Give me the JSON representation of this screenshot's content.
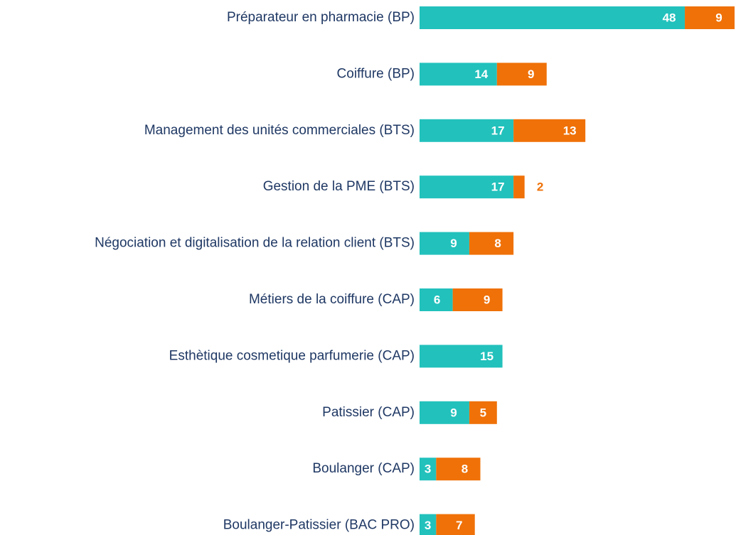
{
  "chart_data": {
    "type": "stacked-barh",
    "categories": [
      "Préparateur en pharmacie (BP)",
      "Coiffure (BP)",
      "Management des unités commerciales (BTS)",
      "Gestion de la PME (BTS)",
      "Négociation et digitalisation de la relation client (BTS)",
      "Métiers de la coiffure (CAP)",
      "Esthètique cosmetique parfumerie (CAP)",
      "Patissier (CAP)",
      "Boulanger (CAP)",
      "Boulanger-Patissier (BAC PRO)"
    ],
    "series": [
      {
        "color": "#22c1bc",
        "values": [
          48,
          14,
          17,
          17,
          9,
          6,
          15,
          9,
          3,
          3
        ]
      },
      {
        "color": "#ef7108",
        "values": [
          9,
          9,
          13,
          2,
          8,
          9,
          null,
          5,
          8,
          7
        ]
      }
    ]
  }
}
